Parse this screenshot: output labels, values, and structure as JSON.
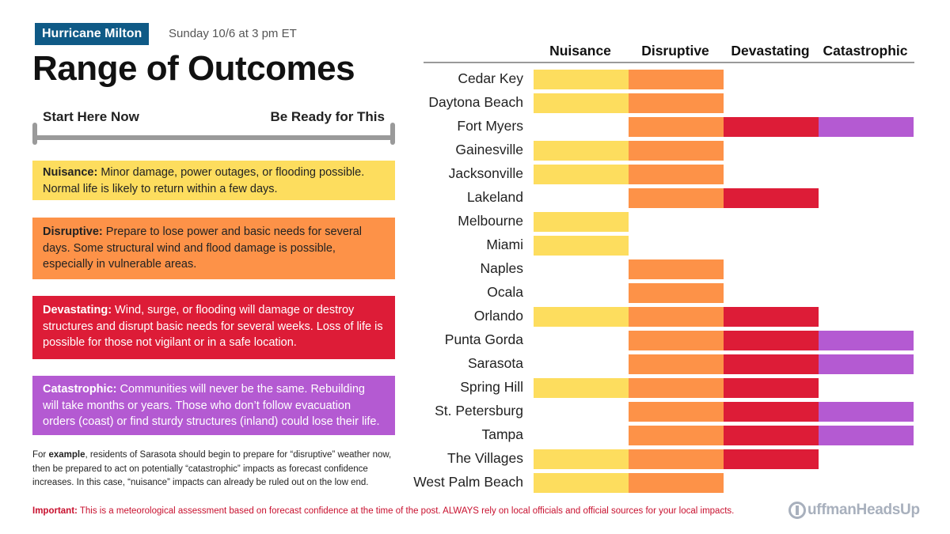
{
  "header": {
    "badge": "Hurricane Milton",
    "date": "Sunday 10/6 at 3 pm ET",
    "title": "Range of Outcomes"
  },
  "range": {
    "left_label": "Start Here Now",
    "right_label": "Be Ready for This"
  },
  "definitions": [
    {
      "term": "Nuisance:",
      "text": " Minor damage, power outages, or flooding possible. Normal life is likely to return within a few days."
    },
    {
      "term": "Disruptive:",
      "text": " Prepare to lose power and basic needs for several days. Some structural wind and flood damage is possible, especially in vulnerable areas."
    },
    {
      "term": "Devastating:",
      "text": " Wind, surge, or flooding will damage or destroy structures and disrupt basic needs for several weeks. Loss of life is possible for those not vigilant or in a safe location."
    },
    {
      "term": "Catastrophic:",
      "text": " Communities will never be the same. Rebuilding will take months or years. Those who don’t follow evacuation orders (coast) or find sturdy structures (inland) could lose their life."
    }
  ],
  "example": {
    "prefix": "For ",
    "bold": "example",
    "text": ", residents of Sarasota should begin to prepare for “disruptive” weather now, then be prepared to act on potentially “catastrophic” impacts as forecast confidence increases. In this case, “nuisance” impacts can already be ruled out on the low end."
  },
  "important": {
    "label": "Important:",
    "text": " This is a meteorological assessment based on forecast confidence at the time of the post. ALWAYS rely on local officials and official sources for your local impacts."
  },
  "logo": {
    "text": "uffmanHeadsUp"
  },
  "colors": {
    "nuisance": "#fddd5e",
    "disruptive": "#fd9248",
    "devastating": "#dd1c37",
    "catastrophic": "#b45ad2",
    "badge": "#0f5a86"
  },
  "chart_data": {
    "type": "table",
    "title": "Range of Outcomes",
    "categories": [
      "Nuisance",
      "Disruptive",
      "Devastating",
      "Catastrophic"
    ],
    "rows": [
      {
        "city": "Cedar Key",
        "levels": [
          1,
          1,
          0,
          0
        ]
      },
      {
        "city": "Daytona Beach",
        "levels": [
          1,
          1,
          0,
          0
        ]
      },
      {
        "city": "Fort Myers",
        "levels": [
          0,
          1,
          1,
          1
        ]
      },
      {
        "city": "Gainesville",
        "levels": [
          1,
          1,
          0,
          0
        ]
      },
      {
        "city": "Jacksonville",
        "levels": [
          1,
          1,
          0,
          0
        ]
      },
      {
        "city": "Lakeland",
        "levels": [
          0,
          1,
          1,
          0
        ]
      },
      {
        "city": "Melbourne",
        "levels": [
          1,
          0,
          0,
          0
        ]
      },
      {
        "city": "Miami",
        "levels": [
          1,
          0,
          0,
          0
        ]
      },
      {
        "city": "Naples",
        "levels": [
          0,
          1,
          0,
          0
        ]
      },
      {
        "city": "Ocala",
        "levels": [
          0,
          1,
          0,
          0
        ]
      },
      {
        "city": "Orlando",
        "levels": [
          1,
          1,
          1,
          0
        ]
      },
      {
        "city": "Punta Gorda",
        "levels": [
          0,
          1,
          1,
          1
        ]
      },
      {
        "city": "Sarasota",
        "levels": [
          0,
          1,
          1,
          1
        ]
      },
      {
        "city": "Spring Hill",
        "levels": [
          1,
          1,
          1,
          0
        ]
      },
      {
        "city": "St. Petersburg",
        "levels": [
          0,
          1,
          1,
          1
        ]
      },
      {
        "city": "Tampa",
        "levels": [
          0,
          1,
          1,
          1
        ]
      },
      {
        "city": "The Villages",
        "levels": [
          1,
          1,
          1,
          0
        ]
      },
      {
        "city": "West Palm Beach",
        "levels": [
          1,
          1,
          0,
          0
        ]
      }
    ]
  }
}
